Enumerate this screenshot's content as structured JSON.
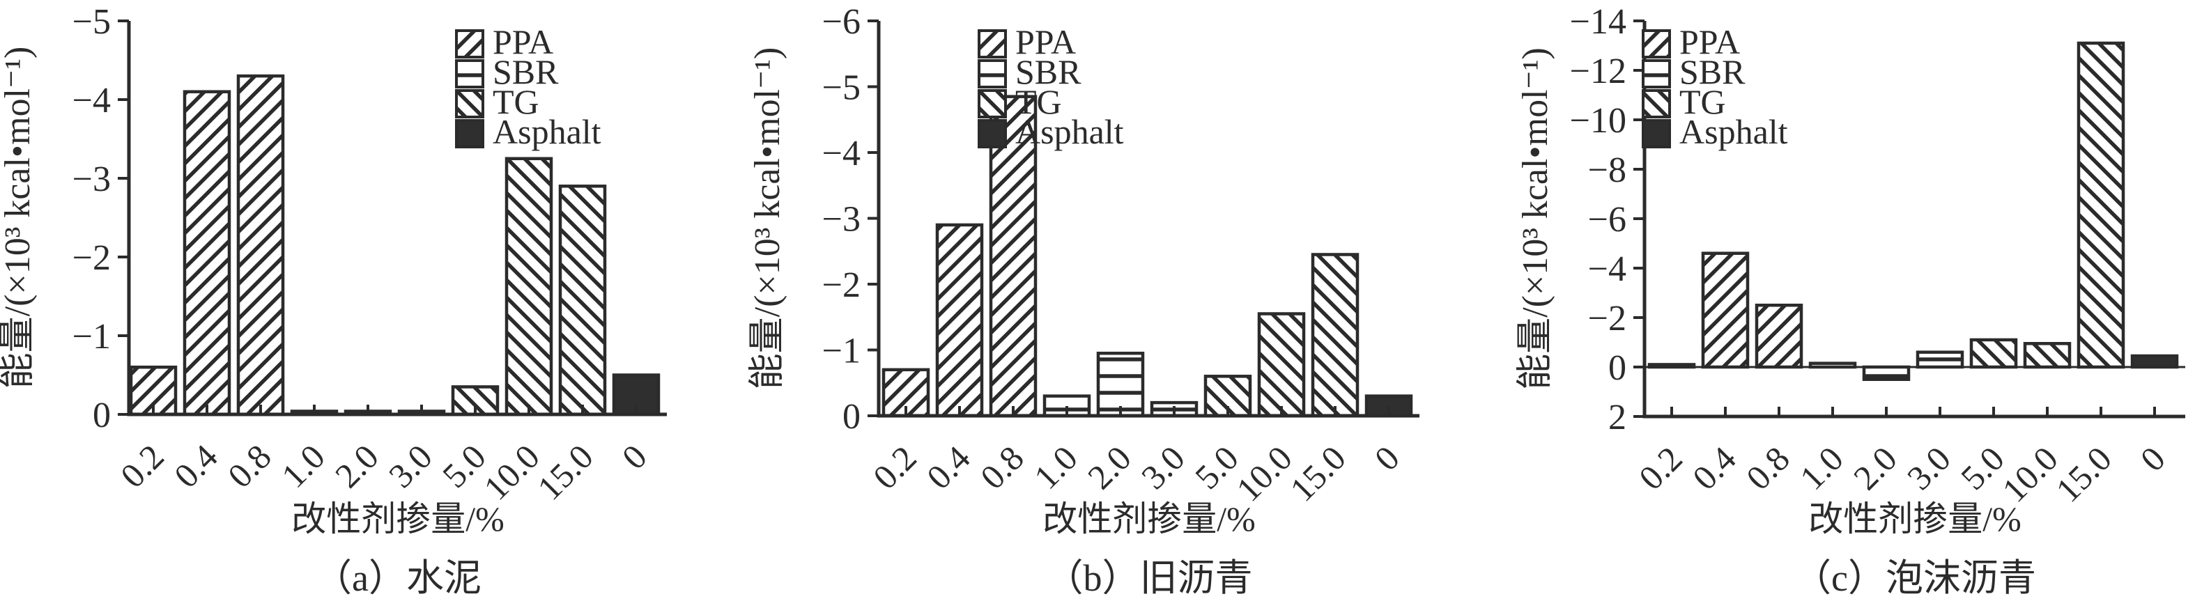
{
  "figure": {
    "y_axis_label": "能量/(×10³ kcal•mol⁻¹)",
    "x_axis_label": "改性剂掺量/%",
    "colors": {
      "ink": "#2b2b2b",
      "asphalt_fill": "#2f2f2f",
      "background": "#ffffff"
    }
  },
  "legend": {
    "entries": [
      {
        "label": "PPA",
        "pattern": "diagonal-forward"
      },
      {
        "label": "SBR",
        "pattern": "horizontal"
      },
      {
        "label": "TG",
        "pattern": "diagonal-backward"
      },
      {
        "label": "Asphalt",
        "pattern": "solid"
      }
    ]
  },
  "chart_data": [
    {
      "type": "bar",
      "id": "a",
      "subtitle": "（a）水泥",
      "xlabel": "改性剂掺量/%",
      "ylabel": "能量/(×10³ kcal•mol⁻¹)",
      "categories": [
        "0.2",
        "0.4",
        "0.8",
        "1.0",
        "2.0",
        "3.0",
        "5.0",
        "10.0",
        "15.0",
        "0"
      ],
      "bar_series": [
        "PPA",
        "PPA",
        "PPA",
        "SBR",
        "SBR",
        "SBR",
        "TG",
        "TG",
        "TG",
        "Asphalt"
      ],
      "values": [
        -0.6,
        -4.1,
        -4.3,
        -0.04,
        -0.04,
        -0.04,
        -0.35,
        -3.25,
        -2.9,
        -0.5
      ],
      "ylim": [
        -5,
        0
      ],
      "yticks": [
        -5,
        -4,
        -3,
        -2,
        -1,
        0
      ],
      "zero_line": false,
      "legend_position": "top-center-right"
    },
    {
      "type": "bar",
      "id": "b",
      "subtitle": "（b）旧沥青",
      "xlabel": "改性剂掺量/%",
      "ylabel": "能量/(×10³ kcal•mol⁻¹)",
      "categories": [
        "0.2",
        "0.4",
        "0.8",
        "1.0",
        "2.0",
        "3.0",
        "5.0",
        "10.0",
        "15.0",
        "0"
      ],
      "bar_series": [
        "PPA",
        "PPA",
        "PPA",
        "SBR",
        "SBR",
        "SBR",
        "TG",
        "TG",
        "TG",
        "Asphalt"
      ],
      "values": [
        -0.7,
        -2.9,
        -4.85,
        -0.3,
        -0.95,
        -0.2,
        -0.6,
        -1.55,
        -2.45,
        -0.3
      ],
      "ylim": [
        -6,
        0
      ],
      "yticks": [
        -6,
        -5,
        -4,
        -3,
        -2,
        -1,
        0
      ],
      "zero_line": false,
      "legend_position": "top-center"
    },
    {
      "type": "bar",
      "id": "c",
      "subtitle": "（c）泡沫沥青",
      "xlabel": "改性剂掺量/%",
      "ylabel": "能量/(×10³ kcal•mol⁻¹)",
      "categories": [
        "0.2",
        "0.4",
        "0.8",
        "1.0",
        "2.0",
        "3.0",
        "5.0",
        "10.0",
        "15.0",
        "0"
      ],
      "bar_series": [
        "PPA",
        "PPA",
        "PPA",
        "SBR",
        "SBR",
        "SBR",
        "TG",
        "TG",
        "TG",
        "Asphalt"
      ],
      "values": [
        -0.1,
        -4.6,
        -2.5,
        -0.15,
        0.5,
        -0.6,
        -1.1,
        -0.95,
        -13.1,
        -0.45
      ],
      "ylim": [
        -14,
        2
      ],
      "yticks": [
        -14,
        -12,
        -10,
        -8,
        -6,
        -4,
        -2,
        0,
        2
      ],
      "zero_line": true,
      "legend_position": "top-center"
    }
  ]
}
